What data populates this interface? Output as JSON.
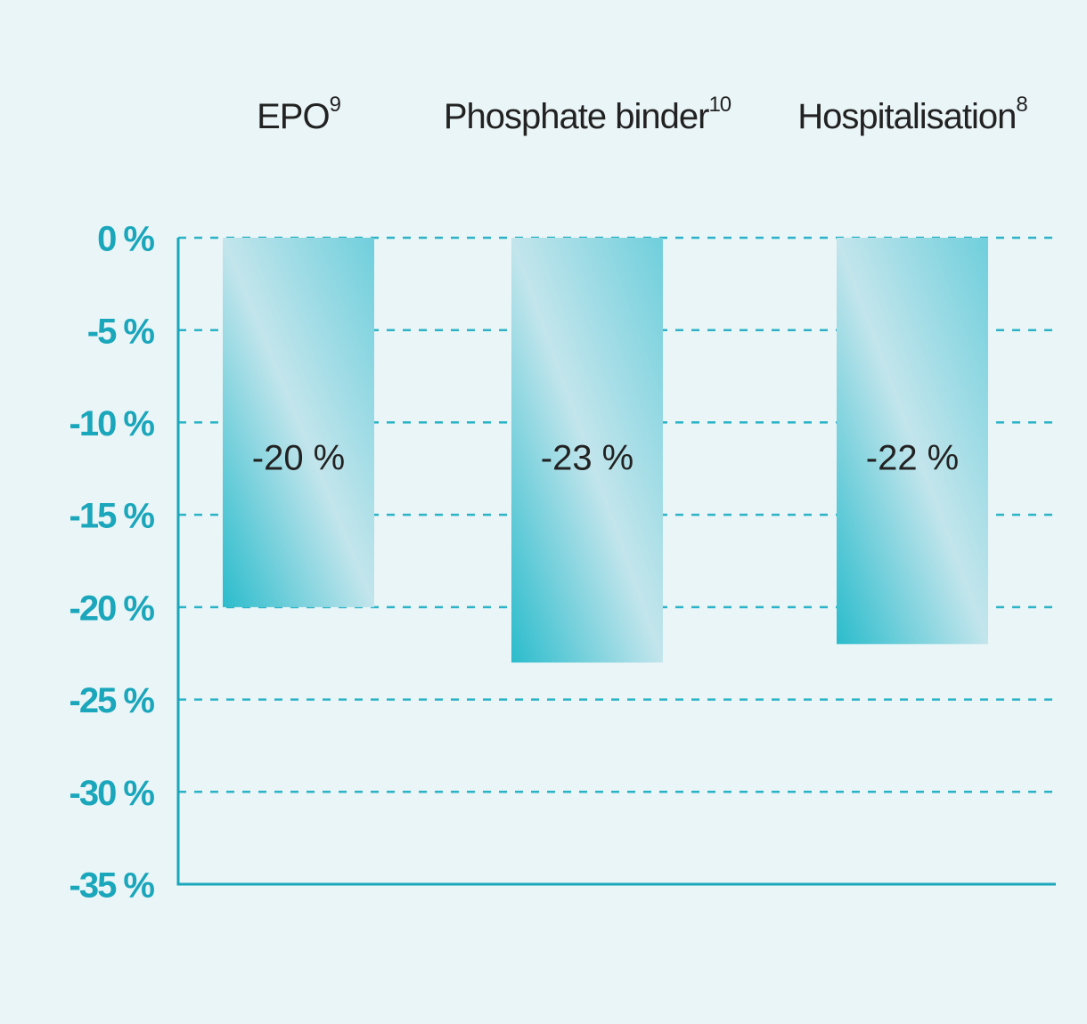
{
  "chart_data": {
    "type": "bar",
    "categories": [
      "EPO",
      "Phosphate binder",
      "Hospitalisation"
    ],
    "category_superscripts": [
      "9",
      "10",
      "8"
    ],
    "values": [
      -20,
      -23,
      -22
    ],
    "value_labels": [
      "-20 %",
      "-23 %",
      "-22 %"
    ],
    "color": "#2bbccc",
    "ylim": [
      -35,
      0
    ],
    "yticks": [
      {
        "value": 0,
        "label": "0 %"
      },
      {
        "value": -5,
        "label": "-5 %"
      },
      {
        "value": -10,
        "label": "-10 %"
      },
      {
        "value": -15,
        "label": "-15 %"
      },
      {
        "value": -20,
        "label": "-20 %"
      },
      {
        "value": -25,
        "label": "-25 %"
      },
      {
        "value": -30,
        "label": "-30 %"
      },
      {
        "value": -35,
        "label": "-35 %"
      }
    ],
    "grid": true
  }
}
